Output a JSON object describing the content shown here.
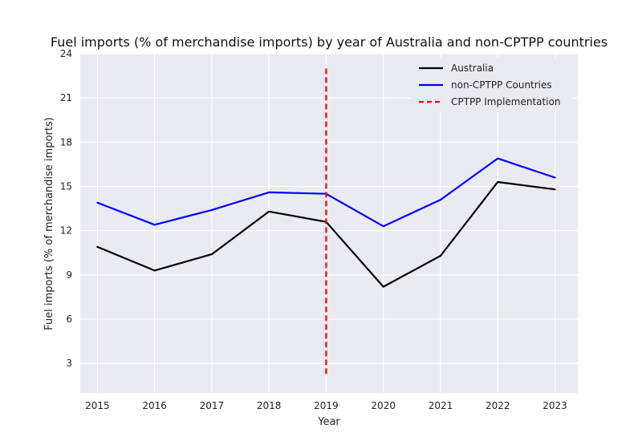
{
  "chart_data": {
    "type": "line",
    "title": "Fuel imports (% of merchandise imports) by year of Australia and non-CPTPP countries",
    "xlabel": "Year",
    "ylabel": "Fuel imports (% of merchandise imports)",
    "x": [
      2015,
      2016,
      2017,
      2018,
      2019,
      2020,
      2021,
      2022,
      2023
    ],
    "x_tick_labels": [
      "2015",
      "2016",
      "2017",
      "2018",
      "2019",
      "2020",
      "2021",
      "2022",
      "2023"
    ],
    "y_ticks": [
      3,
      6,
      9,
      12,
      15,
      18,
      21,
      24
    ],
    "y_tick_labels": [
      "3",
      "6",
      "9",
      "12",
      "15",
      "18",
      "21",
      "24"
    ],
    "xlim": [
      2014.7,
      2023.4
    ],
    "ylim": [
      1.0,
      24.0
    ],
    "grid": true,
    "legend_position": "top-right",
    "series": [
      {
        "name": "Australia",
        "color": "#000000",
        "style": "solid",
        "values": [
          10.9,
          9.3,
          10.4,
          13.3,
          12.6,
          8.2,
          10.3,
          15.3,
          14.8
        ]
      },
      {
        "name": "non-CPTPP Countries",
        "color": "#0000ff",
        "style": "solid",
        "values": [
          13.9,
          12.4,
          13.4,
          14.6,
          14.5,
          12.3,
          14.1,
          16.9,
          15.6
        ]
      }
    ],
    "annotations": [
      {
        "name": "CPTPP Implementation",
        "type": "vertical-line",
        "x": 2019,
        "y_from": 2.2,
        "y_to": 23.0,
        "color": "#ff0000",
        "style": "dashed"
      }
    ]
  }
}
